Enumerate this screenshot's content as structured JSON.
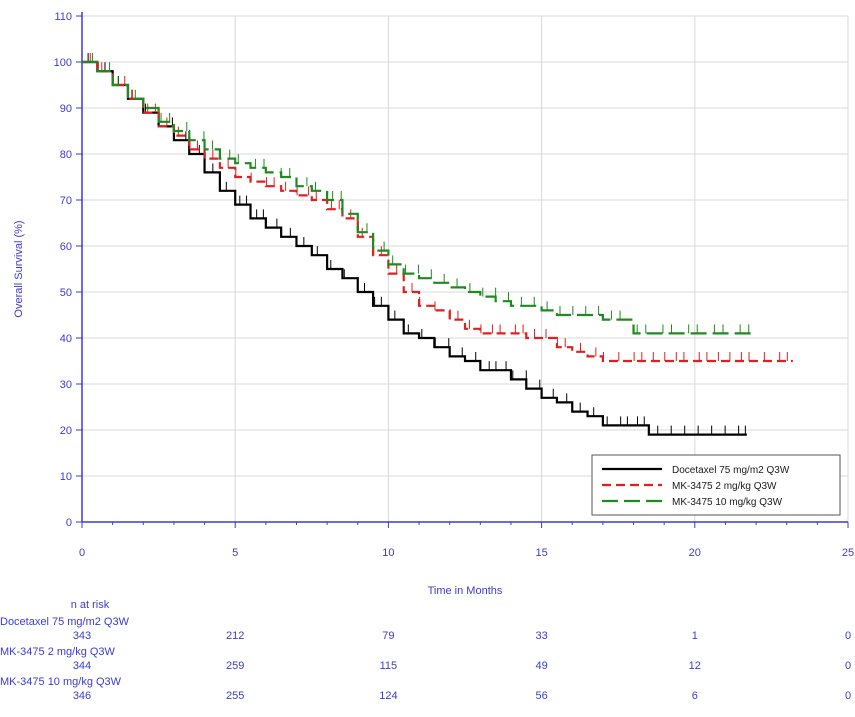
{
  "chart_data": {
    "type": "line",
    "title": "",
    "xlabel": "Time in Months",
    "ylabel": "Overall Survival (%)",
    "xlim": [
      0,
      25
    ],
    "ylim": [
      0,
      110
    ],
    "xticks": [
      "0",
      "5",
      "10",
      "15",
      "20",
      "25"
    ],
    "yticks": [
      "0",
      "10",
      "20",
      "30",
      "40",
      "50",
      "60",
      "70",
      "80",
      "90",
      "100",
      "110"
    ],
    "grid": true,
    "legend_position": "bottom-right",
    "series": [
      {
        "name": "Docetaxel 75 mg/m2 Q3W",
        "color": "#000000",
        "dash": "solid",
        "points": [
          [
            0,
            100
          ],
          [
            0.5,
            98
          ],
          [
            1,
            95
          ],
          [
            1.5,
            92
          ],
          [
            2,
            89
          ],
          [
            2.5,
            86
          ],
          [
            3,
            83
          ],
          [
            3.5,
            80
          ],
          [
            4,
            76
          ],
          [
            4.5,
            72
          ],
          [
            5,
            69
          ],
          [
            5.5,
            66
          ],
          [
            6,
            64
          ],
          [
            6.5,
            62
          ],
          [
            7,
            60
          ],
          [
            7.5,
            58
          ],
          [
            8,
            55
          ],
          [
            8.5,
            53
          ],
          [
            9,
            50
          ],
          [
            9.5,
            47
          ],
          [
            10,
            44
          ],
          [
            10.5,
            41
          ],
          [
            11,
            40
          ],
          [
            11.5,
            38
          ],
          [
            12,
            36
          ],
          [
            12.5,
            35
          ],
          [
            13,
            33
          ],
          [
            13.5,
            33
          ],
          [
            14,
            31
          ],
          [
            14.5,
            29
          ],
          [
            15,
            27
          ],
          [
            15.5,
            26
          ],
          [
            16,
            24
          ],
          [
            16.5,
            23
          ],
          [
            17,
            21
          ],
          [
            17.5,
            21
          ],
          [
            18,
            21
          ],
          [
            18.5,
            19
          ],
          [
            19,
            19
          ],
          [
            19.5,
            19
          ],
          [
            20,
            19
          ],
          [
            20.5,
            19
          ],
          [
            21,
            19
          ],
          [
            21.7,
            19
          ]
        ]
      },
      {
        "name": "MK-3475 2 mg/kg Q3W",
        "color": "#e02020",
        "dash": "dashed",
        "points": [
          [
            0,
            100
          ],
          [
            0.5,
            98
          ],
          [
            1,
            95
          ],
          [
            1.5,
            92
          ],
          [
            2,
            89
          ],
          [
            2.5,
            86
          ],
          [
            3,
            84
          ],
          [
            3.5,
            81
          ],
          [
            4,
            79
          ],
          [
            4.5,
            77
          ],
          [
            5,
            75
          ],
          [
            5.5,
            74
          ],
          [
            6,
            73
          ],
          [
            6.5,
            72
          ],
          [
            7,
            71
          ],
          [
            7.5,
            70
          ],
          [
            8,
            68
          ],
          [
            8.5,
            66
          ],
          [
            9,
            62
          ],
          [
            9.5,
            58
          ],
          [
            10,
            54
          ],
          [
            10.5,
            50
          ],
          [
            11,
            47
          ],
          [
            11.5,
            46
          ],
          [
            12,
            44
          ],
          [
            12.5,
            42
          ],
          [
            13,
            41
          ],
          [
            13.5,
            41
          ],
          [
            14,
            41
          ],
          [
            14.5,
            40
          ],
          [
            15,
            40
          ],
          [
            15.5,
            38
          ],
          [
            16,
            37
          ],
          [
            16.5,
            36
          ],
          [
            17,
            35
          ],
          [
            18,
            35
          ],
          [
            19,
            35
          ],
          [
            20,
            35
          ],
          [
            21,
            35
          ],
          [
            22,
            35
          ],
          [
            23.2,
            35
          ]
        ]
      },
      {
        "name": "MK-3475 10 mg/kg Q3W",
        "color": "#1f8a1f",
        "dash": "longdash",
        "points": [
          [
            0,
            100
          ],
          [
            0.5,
            98
          ],
          [
            1,
            95
          ],
          [
            1.5,
            92
          ],
          [
            2,
            90
          ],
          [
            2.5,
            87
          ],
          [
            3,
            85
          ],
          [
            3.5,
            83
          ],
          [
            4,
            81
          ],
          [
            4.5,
            79
          ],
          [
            5,
            78
          ],
          [
            5.5,
            77
          ],
          [
            6,
            76
          ],
          [
            6.5,
            75
          ],
          [
            7,
            73
          ],
          [
            7.5,
            72
          ],
          [
            8,
            70
          ],
          [
            8.5,
            67
          ],
          [
            9,
            63
          ],
          [
            9.5,
            59
          ],
          [
            10,
            56
          ],
          [
            10.5,
            54
          ],
          [
            11,
            53
          ],
          [
            11.5,
            52
          ],
          [
            12,
            51
          ],
          [
            12.5,
            50
          ],
          [
            13,
            49
          ],
          [
            13.5,
            48
          ],
          [
            14,
            47
          ],
          [
            14.5,
            47
          ],
          [
            15,
            46
          ],
          [
            15.5,
            45
          ],
          [
            16,
            45
          ],
          [
            16.5,
            45
          ],
          [
            17,
            44
          ],
          [
            17.5,
            44
          ],
          [
            18,
            41
          ],
          [
            18.5,
            41
          ],
          [
            19,
            41
          ],
          [
            20,
            41
          ],
          [
            21,
            41
          ],
          [
            22,
            41
          ]
        ]
      }
    ],
    "risk_table": {
      "header": "n at risk",
      "timepoints": [
        0,
        5,
        10,
        15,
        20,
        25
      ],
      "rows": [
        {
          "label": "Docetaxel 75 mg/m2 Q3W",
          "values": [
            "343",
            "212",
            "79",
            "33",
            "1",
            "0"
          ]
        },
        {
          "label": "MK-3475 2 mg/kg Q3W",
          "values": [
            "344",
            "259",
            "115",
            "49",
            "12",
            "0"
          ]
        },
        {
          "label": "MK-3475 10 mg/kg Q3W",
          "values": [
            "346",
            "255",
            "124",
            "56",
            "6",
            "0"
          ]
        }
      ]
    }
  }
}
